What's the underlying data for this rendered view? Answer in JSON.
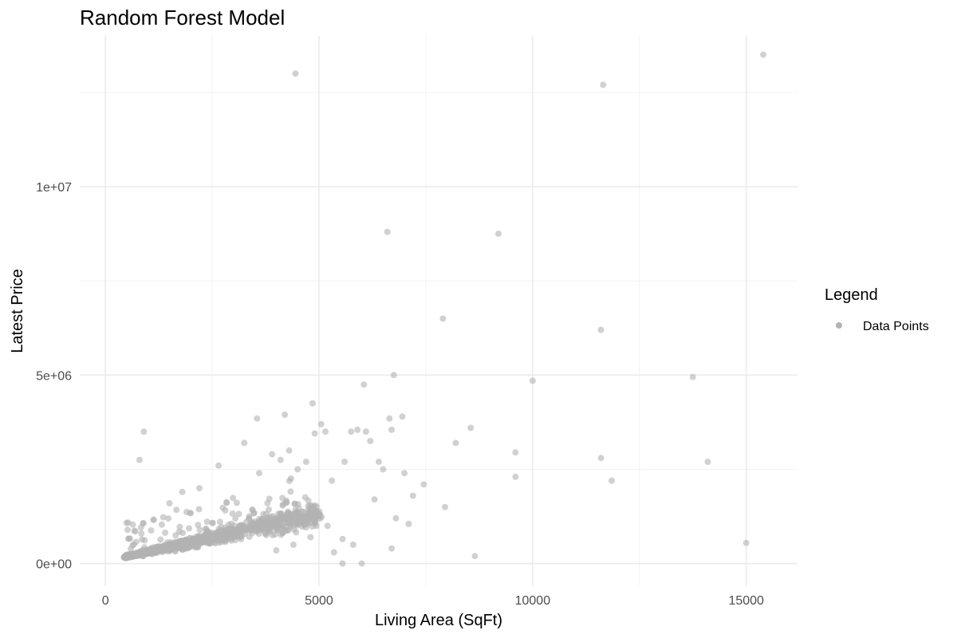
{
  "chart_data": {
    "type": "scatter",
    "title": "Random Forest Model",
    "xlabel": "Living Area (SqFt)",
    "ylabel": "Latest Price",
    "xlim": [
      -600,
      16200
    ],
    "ylim": [
      -600000,
      14000000
    ],
    "x_ticks": [
      0,
      5000,
      10000,
      15000
    ],
    "x_tick_labels": [
      "0",
      "5000",
      "10000",
      "15000"
    ],
    "x_minor_ticks": [
      2500,
      7500,
      12500
    ],
    "y_ticks": [
      0,
      5000000,
      10000000
    ],
    "y_tick_labels": [
      "0e+00",
      "5e+06",
      "1e+07"
    ],
    "y_minor_ticks": [
      2500000,
      7500000,
      12500000
    ],
    "grid": true,
    "legend": {
      "title": "Legend",
      "placement": "right",
      "entries": [
        "Data Points"
      ]
    },
    "point_color": "#b3b3b3",
    "series": [
      {
        "name": "Data Points",
        "points": [
          [
            4450,
            13000000
          ],
          [
            11650,
            12700000
          ],
          [
            15400,
            13500000
          ],
          [
            6600,
            8800000
          ],
          [
            9200,
            8750000
          ],
          [
            7900,
            6500000
          ],
          [
            11600,
            6200000
          ],
          [
            6750,
            5000000
          ],
          [
            10000,
            4850000
          ],
          [
            13750,
            4950000
          ],
          [
            6050,
            4750000
          ],
          [
            4850,
            4250000
          ],
          [
            4200,
            3950000
          ],
          [
            6950,
            3900000
          ],
          [
            6650,
            3850000
          ],
          [
            5750,
            3500000
          ],
          [
            5150,
            3500000
          ],
          [
            4900,
            3450000
          ],
          [
            6100,
            3500000
          ],
          [
            5900,
            3550000
          ],
          [
            6700,
            3550000
          ],
          [
            8550,
            3600000
          ],
          [
            8200,
            3200000
          ],
          [
            5050,
            3700000
          ],
          [
            6200,
            3250000
          ],
          [
            3550,
            3850000
          ],
          [
            900,
            3500000
          ],
          [
            800,
            2750000
          ],
          [
            9600,
            2950000
          ],
          [
            11600,
            2800000
          ],
          [
            14100,
            2700000
          ],
          [
            9600,
            2300000
          ],
          [
            11850,
            2200000
          ],
          [
            7450,
            2100000
          ],
          [
            7200,
            1800000
          ],
          [
            7950,
            1500000
          ],
          [
            6800,
            1200000
          ],
          [
            7100,
            1050000
          ],
          [
            6700,
            400000
          ],
          [
            5350,
            300000
          ],
          [
            8650,
            200000
          ],
          [
            15000,
            550000
          ],
          [
            5550,
            650000
          ],
          [
            5800,
            500000
          ],
          [
            6000,
            0
          ],
          [
            5550,
            0
          ],
          [
            4400,
            500000
          ],
          [
            4000,
            350000
          ],
          [
            4800,
            700000
          ],
          [
            5200,
            1000000
          ],
          [
            6300,
            1700000
          ],
          [
            6500,
            2500000
          ],
          [
            5600,
            2700000
          ],
          [
            6400,
            2700000
          ],
          [
            7000,
            2400000
          ],
          [
            5300,
            2200000
          ],
          [
            4700,
            2700000
          ],
          [
            3250,
            3200000
          ],
          [
            2650,
            2600000
          ],
          [
            2200,
            2000000
          ],
          [
            1800,
            1900000
          ],
          [
            1500,
            1600000
          ],
          [
            4100,
            2750000
          ],
          [
            3600,
            2400000
          ],
          [
            3900,
            2900000
          ],
          [
            4500,
            2500000
          ],
          [
            4300,
            3000000
          ]
        ]
      }
    ]
  }
}
